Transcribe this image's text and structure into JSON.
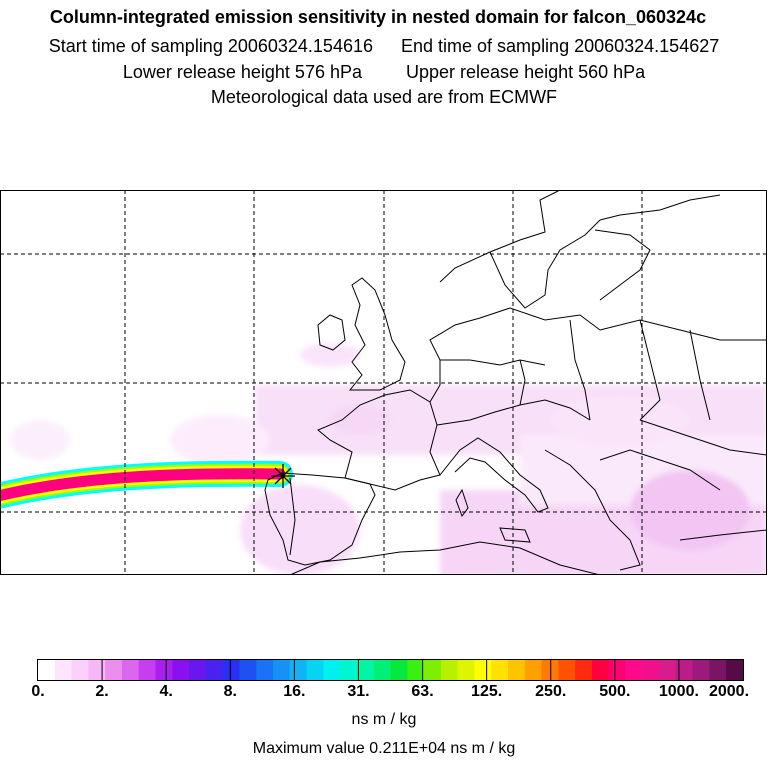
{
  "header": {
    "title": "Column-integrated emission sensitivity in nested domain for falcon_060324c",
    "start_label": "Start time of sampling 20060324.154616",
    "end_label": "End time of sampling 20060324.154627",
    "lower_label": "Lower release height  576 hPa",
    "upper_label": "Upper release height  560 hPa",
    "met_label": "Meteorological data used are from ECMWF"
  },
  "map": {
    "description_layer": "emission-sensitivity-field",
    "release_marker": "release-point-cross",
    "plume_colors": [
      "#00ffff",
      "#ffff00",
      "#ff0080",
      "#ffff00",
      "#00ffff"
    ]
  },
  "colorbar": {
    "tick_labels": [
      "0.",
      "2.",
      "4.",
      "8.",
      "16.",
      "31.",
      "63.",
      "125.",
      "250.",
      "500.",
      "1000.",
      "2000."
    ],
    "colors": [
      "#ffffff",
      "#fde6fd",
      "#fbd0fb",
      "#f7b7f7",
      "#ec8eee",
      "#dd66ee",
      "#c63ef0",
      "#a81fee",
      "#8a10f0",
      "#6a16ee",
      "#4a22ef",
      "#2a30f2",
      "#1e50f2",
      "#1a72f4",
      "#1592f4",
      "#10b3f4",
      "#08d4f2",
      "#00f0f0",
      "#00f5d0",
      "#00f5a5",
      "#00f077",
      "#06e83e",
      "#3af010",
      "#7cf000",
      "#b6f200",
      "#dff500",
      "#ffff00",
      "#ffe200",
      "#ffc400",
      "#ffa000",
      "#ff7a00",
      "#ff5200",
      "#ff2a10",
      "#ff0040",
      "#ff0070",
      "#ff0a8c",
      "#f0108f",
      "#d81b8d",
      "#bc1c89",
      "#9b1a7c",
      "#7a1465",
      "#550c46"
    ],
    "units": "ns m / kg",
    "max_label": "Maximum value  0.211E+04 ns m / kg"
  }
}
